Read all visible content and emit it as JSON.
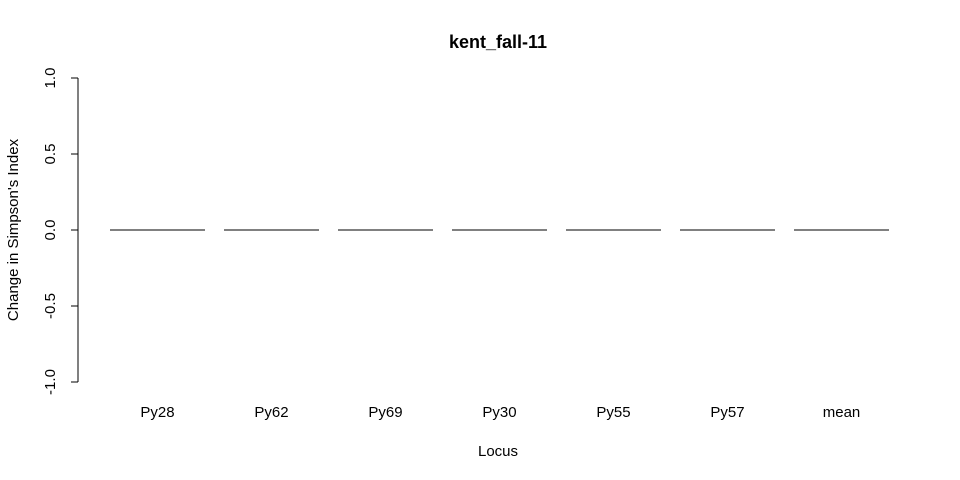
{
  "chart_data": {
    "type": "bar",
    "title": "kent_fall-11",
    "xlabel": "Locus",
    "ylabel": "Change in Simpson's Index",
    "categories": [
      "Py28",
      "Py62",
      "Py69",
      "Py30",
      "Py55",
      "Py57",
      "mean"
    ],
    "values": [
      0,
      0,
      0,
      0,
      0,
      0,
      0
    ],
    "ylim": [
      -1.0,
      1.0
    ],
    "yticks": [
      "-1.0",
      "-0.5",
      "0.0",
      "0.5",
      "1.0"
    ],
    "grid": false,
    "legend": "none",
    "bar_fill": "#ffffff",
    "bar_stroke": "#000000"
  }
}
